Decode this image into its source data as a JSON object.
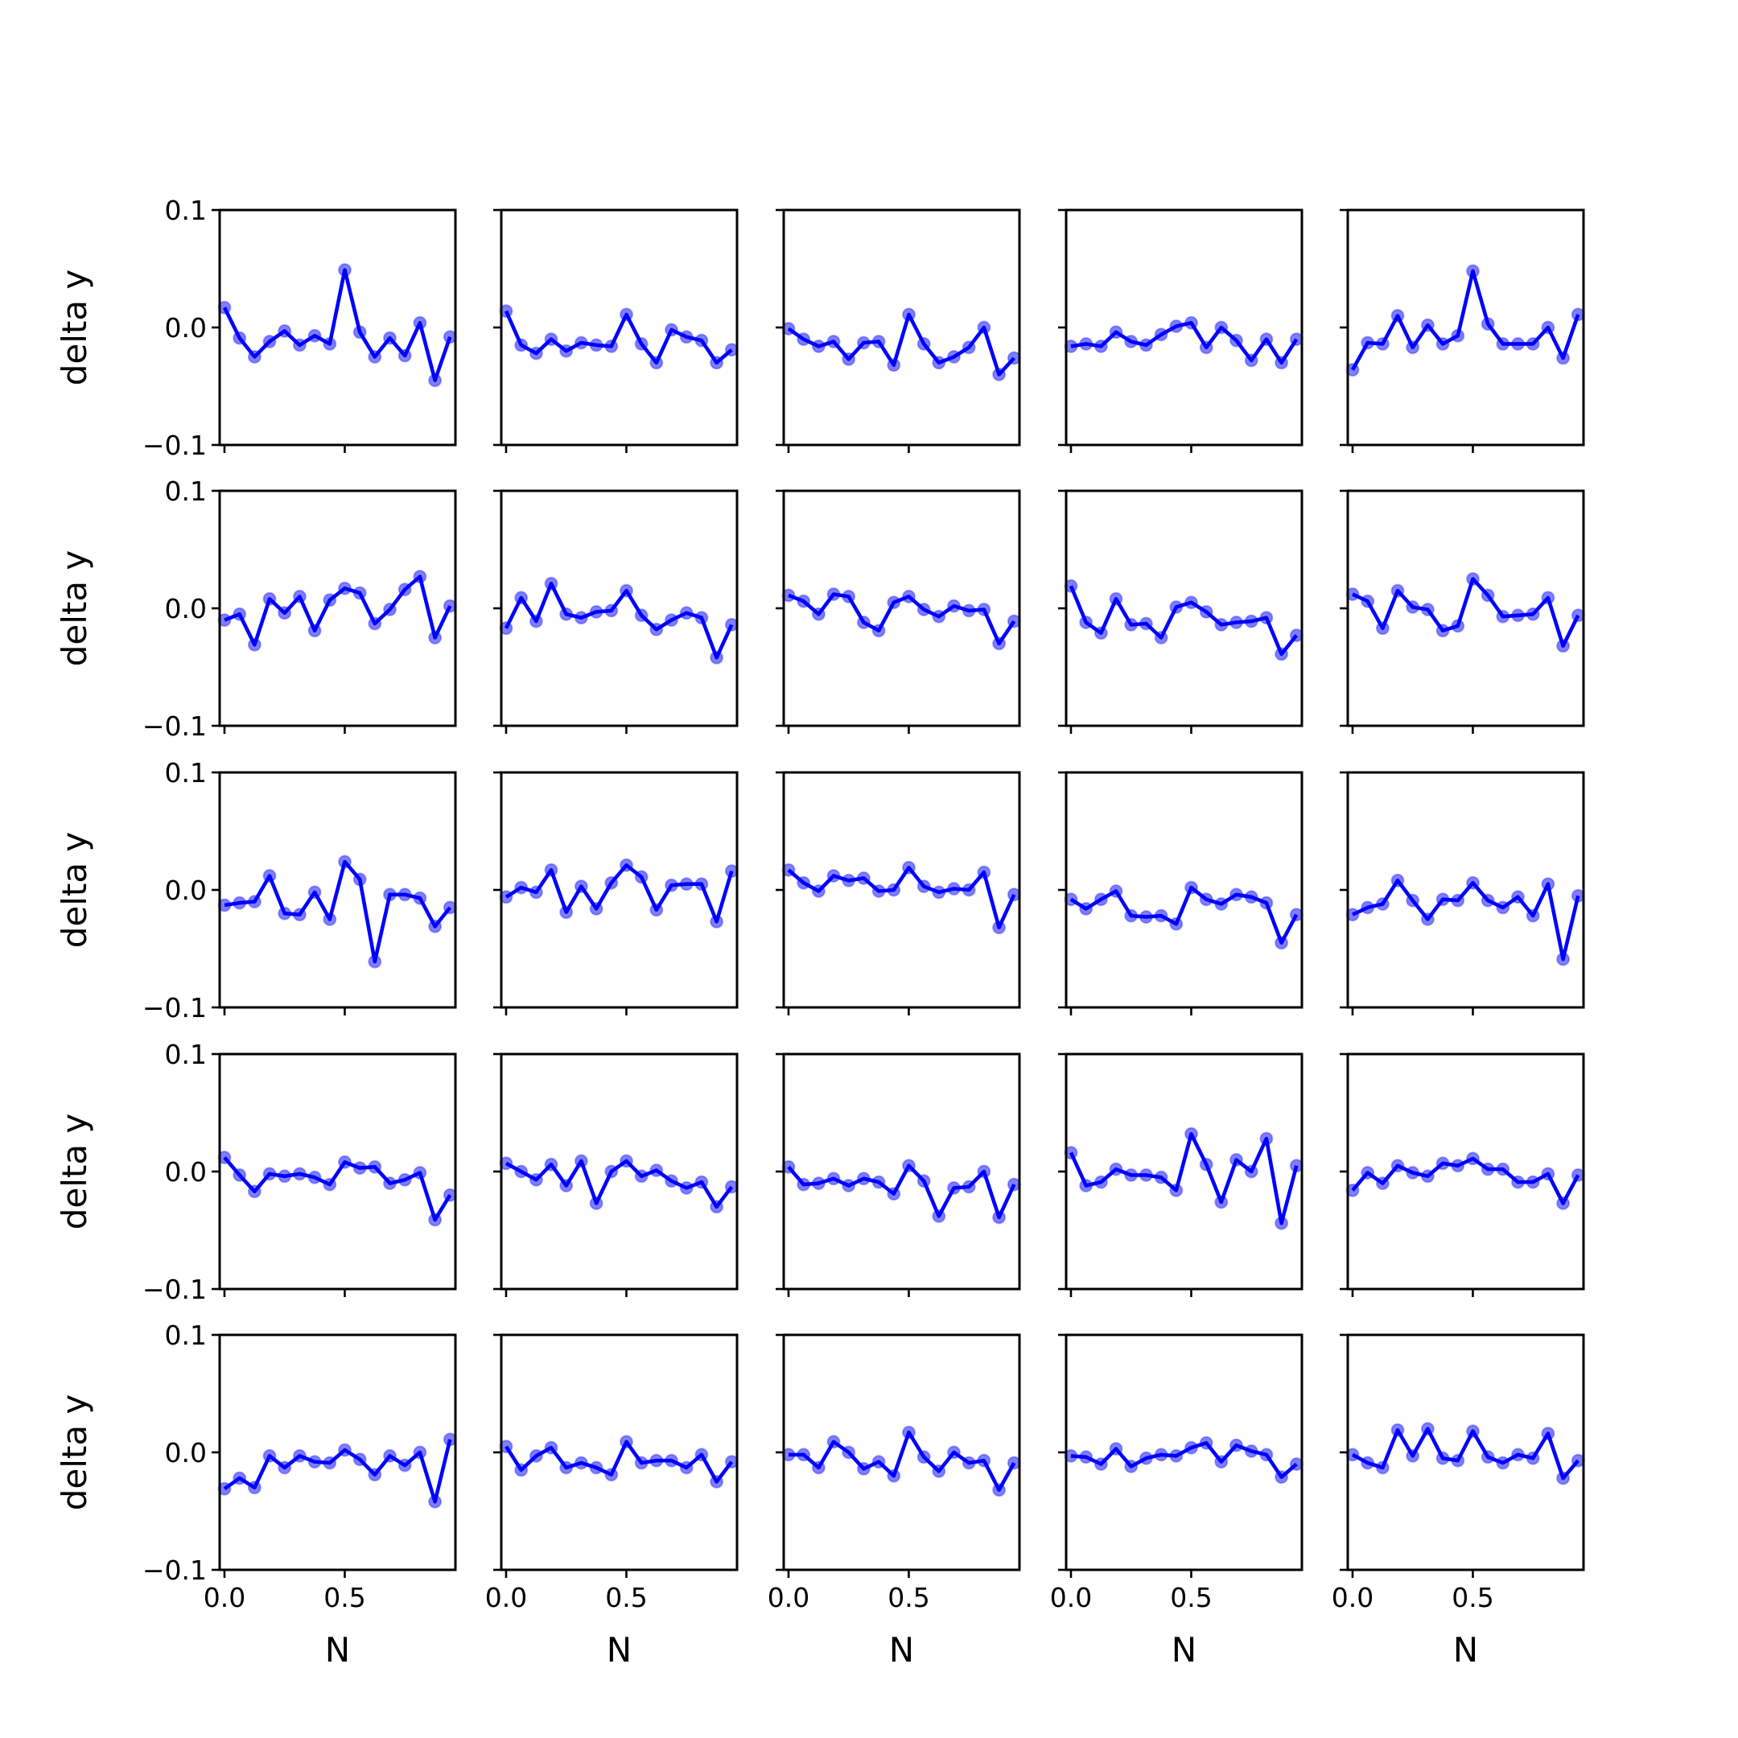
{
  "chart_data": {
    "type": "line",
    "grid": false,
    "rows": 5,
    "cols": 5,
    "xlabel": "N",
    "ylabel": "delta y",
    "xlim": [
      -0.02,
      0.96
    ],
    "ylim": [
      -0.1,
      0.1
    ],
    "xticks": [
      0.0,
      0.5
    ],
    "xtick_labels": [
      "0.0",
      "0.5"
    ],
    "yticks": [
      -0.1,
      0.0,
      0.1
    ],
    "ytick_labels": [
      "−0.1",
      "0.0",
      "0.1"
    ],
    "x": [
      0.0,
      0.0625,
      0.125,
      0.1875,
      0.25,
      0.3125,
      0.375,
      0.4375,
      0.5,
      0.5625,
      0.625,
      0.6875,
      0.75,
      0.8125,
      0.875,
      0.9375
    ],
    "colors": {
      "line": "#0000ff",
      "marker": "#4b4bff"
    },
    "panels": [
      {
        "series": [
          {
            "values": [
              0.017,
              -0.009,
              -0.025,
              -0.012,
              -0.003,
              -0.015,
              -0.007,
              -0.014,
              0.049,
              -0.004,
              -0.025,
              -0.009,
              -0.024,
              0.004,
              -0.045,
              -0.008
            ]
          }
        ]
      },
      {
        "series": [
          {
            "values": [
              0.014,
              -0.015,
              -0.022,
              -0.01,
              -0.02,
              -0.013,
              -0.015,
              -0.016,
              0.011,
              -0.014,
              -0.03,
              -0.002,
              -0.008,
              -0.011,
              -0.03,
              -0.019
            ]
          }
        ]
      },
      {
        "series": [
          {
            "values": [
              -0.001,
              -0.01,
              -0.016,
              -0.012,
              -0.027,
              -0.013,
              -0.012,
              -0.032,
              0.011,
              -0.014,
              -0.03,
              -0.025,
              -0.017,
              0.0,
              -0.04,
              -0.026
            ]
          }
        ]
      },
      {
        "series": [
          {
            "values": [
              -0.016,
              -0.014,
              -0.016,
              -0.004,
              -0.012,
              -0.015,
              -0.006,
              0.001,
              0.004,
              -0.017,
              0.0,
              -0.011,
              -0.028,
              -0.01,
              -0.03,
              -0.01
            ]
          }
        ]
      },
      {
        "series": [
          {
            "values": [
              -0.036,
              -0.013,
              -0.014,
              0.01,
              -0.017,
              0.002,
              -0.014,
              -0.007,
              0.048,
              0.003,
              -0.014,
              -0.014,
              -0.014,
              0.0,
              -0.026,
              0.011
            ]
          }
        ]
      },
      {
        "series": [
          {
            "values": [
              -0.01,
              -0.005,
              -0.031,
              0.008,
              -0.004,
              0.01,
              -0.019,
              0.007,
              0.017,
              0.013,
              -0.013,
              -0.001,
              0.016,
              0.027,
              -0.025,
              0.002
            ]
          }
        ]
      },
      {
        "series": [
          {
            "values": [
              -0.017,
              0.009,
              -0.011,
              0.021,
              -0.005,
              -0.008,
              -0.003,
              -0.002,
              0.015,
              -0.006,
              -0.018,
              -0.01,
              -0.004,
              -0.008,
              -0.042,
              -0.014
            ]
          }
        ]
      },
      {
        "series": [
          {
            "values": [
              0.011,
              0.006,
              -0.005,
              0.012,
              0.01,
              -0.012,
              -0.019,
              0.005,
              0.01,
              -0.001,
              -0.007,
              0.002,
              -0.002,
              -0.001,
              -0.03,
              -0.011
            ]
          }
        ]
      },
      {
        "series": [
          {
            "values": [
              0.019,
              -0.012,
              -0.021,
              0.008,
              -0.014,
              -0.013,
              -0.025,
              0.001,
              0.005,
              -0.003,
              -0.014,
              -0.012,
              -0.011,
              -0.008,
              -0.039,
              -0.023
            ]
          }
        ]
      },
      {
        "series": [
          {
            "values": [
              0.012,
              0.006,
              -0.017,
              0.015,
              0.001,
              -0.001,
              -0.019,
              -0.015,
              0.025,
              0.011,
              -0.007,
              -0.006,
              -0.005,
              0.009,
              -0.032,
              -0.006
            ]
          }
        ]
      },
      {
        "series": [
          {
            "values": [
              -0.013,
              -0.011,
              -0.01,
              0.012,
              -0.02,
              -0.021,
              -0.002,
              -0.025,
              0.024,
              0.009,
              -0.061,
              -0.004,
              -0.004,
              -0.007,
              -0.031,
              -0.015
            ]
          }
        ]
      },
      {
        "series": [
          {
            "values": [
              -0.006,
              0.002,
              -0.002,
              0.017,
              -0.019,
              0.003,
              -0.016,
              0.006,
              0.021,
              0.011,
              -0.017,
              0.004,
              0.005,
              0.005,
              -0.027,
              0.016
            ]
          }
        ]
      },
      {
        "series": [
          {
            "values": [
              0.017,
              0.006,
              -0.001,
              0.012,
              0.008,
              0.01,
              -0.001,
              0.0,
              0.019,
              0.003,
              -0.002,
              0.001,
              0.0,
              0.015,
              -0.032,
              -0.004
            ]
          }
        ]
      },
      {
        "series": [
          {
            "values": [
              -0.008,
              -0.016,
              -0.008,
              -0.001,
              -0.022,
              -0.023,
              -0.022,
              -0.029,
              0.002,
              -0.008,
              -0.012,
              -0.004,
              -0.006,
              -0.011,
              -0.045,
              -0.021
            ]
          }
        ]
      },
      {
        "series": [
          {
            "values": [
              -0.021,
              -0.015,
              -0.012,
              0.008,
              -0.009,
              -0.025,
              -0.008,
              -0.009,
              0.006,
              -0.009,
              -0.015,
              -0.006,
              -0.022,
              0.005,
              -0.059,
              -0.005
            ]
          }
        ]
      },
      {
        "series": [
          {
            "values": [
              0.012,
              -0.003,
              -0.017,
              -0.002,
              -0.004,
              -0.002,
              -0.005,
              -0.011,
              0.008,
              0.003,
              0.004,
              -0.01,
              -0.007,
              -0.001,
              -0.041,
              -0.02
            ]
          }
        ]
      },
      {
        "series": [
          {
            "values": [
              0.007,
              0.0,
              -0.007,
              0.006,
              -0.012,
              0.009,
              -0.027,
              0.0,
              0.009,
              -0.004,
              0.001,
              -0.008,
              -0.014,
              -0.009,
              -0.03,
              -0.013
            ]
          }
        ]
      },
      {
        "series": [
          {
            "values": [
              0.004,
              -0.011,
              -0.01,
              -0.006,
              -0.012,
              -0.006,
              -0.009,
              -0.019,
              0.005,
              -0.008,
              -0.038,
              -0.014,
              -0.013,
              0.0,
              -0.039,
              -0.011
            ]
          }
        ]
      },
      {
        "series": [
          {
            "values": [
              0.016,
              -0.012,
              -0.009,
              0.002,
              -0.003,
              -0.003,
              -0.005,
              -0.016,
              0.032,
              0.006,
              -0.026,
              0.01,
              0.0,
              0.028,
              -0.044,
              0.005
            ]
          }
        ]
      },
      {
        "series": [
          {
            "values": [
              -0.016,
              -0.001,
              -0.01,
              0.005,
              -0.001,
              -0.004,
              0.007,
              0.005,
              0.011,
              0.002,
              0.002,
              -0.009,
              -0.009,
              -0.002,
              -0.027,
              -0.003
            ]
          }
        ]
      },
      {
        "series": [
          {
            "values": [
              -0.031,
              -0.022,
              -0.03,
              -0.003,
              -0.013,
              -0.003,
              -0.008,
              -0.009,
              0.002,
              -0.006,
              -0.019,
              -0.003,
              -0.011,
              0.0,
              -0.042,
              0.011
            ]
          }
        ]
      },
      {
        "series": [
          {
            "values": [
              0.005,
              -0.015,
              -0.003,
              0.004,
              -0.013,
              -0.009,
              -0.013,
              -0.019,
              0.009,
              -0.009,
              -0.007,
              -0.007,
              -0.013,
              -0.002,
              -0.025,
              -0.008
            ]
          }
        ]
      },
      {
        "series": [
          {
            "values": [
              -0.002,
              -0.002,
              -0.013,
              0.009,
              0.0,
              -0.014,
              -0.008,
              -0.02,
              0.017,
              -0.004,
              -0.016,
              0.0,
              -0.009,
              -0.007,
              -0.032,
              -0.009
            ]
          }
        ]
      },
      {
        "series": [
          {
            "values": [
              -0.003,
              -0.004,
              -0.01,
              0.003,
              -0.012,
              -0.005,
              -0.002,
              -0.003,
              0.004,
              0.008,
              -0.008,
              0.006,
              0.001,
              -0.002,
              -0.021,
              -0.01
            ]
          }
        ]
      },
      {
        "series": [
          {
            "values": [
              -0.002,
              -0.009,
              -0.013,
              0.019,
              -0.003,
              0.02,
              -0.005,
              -0.007,
              0.018,
              -0.004,
              -0.009,
              -0.002,
              -0.005,
              0.016,
              -0.022,
              -0.007
            ]
          }
        ]
      }
    ]
  }
}
